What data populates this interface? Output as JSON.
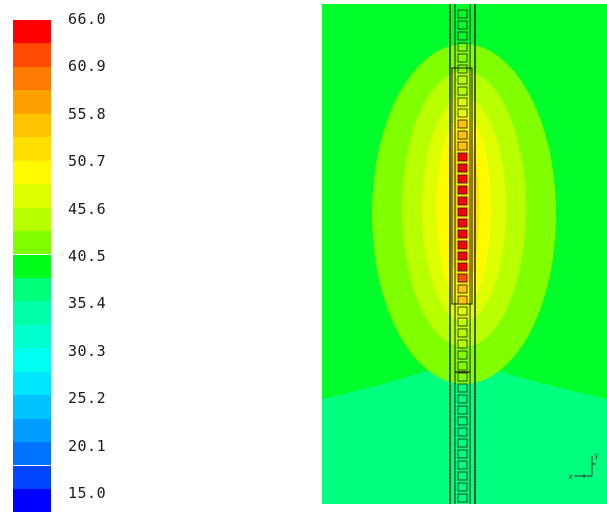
{
  "legend": {
    "labels": [
      "66.0",
      "60.9",
      "55.8",
      "50.7",
      "45.6",
      "40.5",
      "35.4",
      "30.3",
      "25.2",
      "20.1",
      "15.0"
    ],
    "colors": [
      "#ff0000",
      "#ff4a00",
      "#ff7a00",
      "#ffa200",
      "#ffc300",
      "#ffdf00",
      "#fffa00",
      "#deff00",
      "#b8ff00",
      "#7fff00",
      "#00ff18",
      "#00ff7a",
      "#00ffa8",
      "#00ffce",
      "#00fff0",
      "#00e6ff",
      "#00c2ff",
      "#009cff",
      "#0074ff",
      "#0046ff",
      "#0000ff"
    ]
  },
  "view": {
    "background_color": "#00ff7f",
    "triad_labels": [
      "y",
      "x"
    ]
  }
}
